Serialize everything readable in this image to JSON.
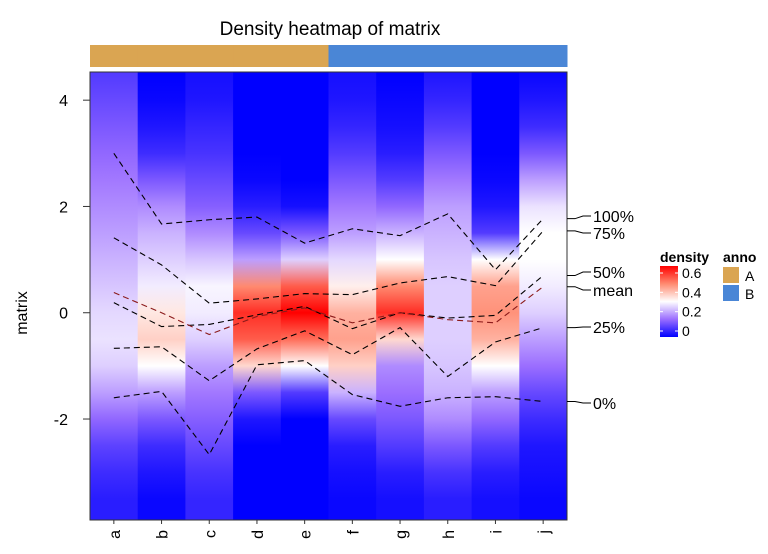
{
  "chart_data": {
    "type": "heatmap",
    "title": "Density heatmap of matrix",
    "ylabel": "matrix",
    "xlabel": "",
    "ylim": [
      -3.9,
      4.53
    ],
    "yticks": [
      4,
      2,
      0,
      -2
    ],
    "columns": [
      "a",
      "b",
      "c",
      "d",
      "e",
      "f",
      "g",
      "h",
      "i",
      "j"
    ],
    "annotation": {
      "title": "anno",
      "values": [
        "A",
        "A",
        "A",
        "A",
        "A",
        "B",
        "B",
        "B",
        "B",
        "B"
      ],
      "levels": [
        {
          "label": "A",
          "color": "#DAA552"
        },
        {
          "label": "B",
          "color": "#4A86D6"
        }
      ]
    },
    "density_legend": {
      "title": "density",
      "ticks": [
        0.6,
        0.4,
        0.2,
        0
      ],
      "colors": [
        {
          "v": 0,
          "c": "#0000FF"
        },
        {
          "v": 0.15,
          "c": "#9B6EFF"
        },
        {
          "v": 0.3,
          "c": "#FFFFFF"
        },
        {
          "v": 0.45,
          "c": "#FF8A70"
        },
        {
          "v": 0.6,
          "c": "#FF0000"
        }
      ]
    },
    "density_grid_y": [
      4.5,
      4,
      3.5,
      3,
      2.5,
      2,
      1.5,
      1,
      0.5,
      0,
      -0.5,
      -1,
      -1.5,
      -2,
      -2.5,
      -3,
      -3.5
    ],
    "density": [
      [
        0.08,
        0.1,
        0.12,
        0.14,
        0.16,
        0.18,
        0.2,
        0.22,
        0.24,
        0.26,
        0.27,
        0.25,
        0.2,
        0.14,
        0.09,
        0.06,
        0.04
      ],
      [
        0,
        0.01,
        0.03,
        0.06,
        0.12,
        0.18,
        0.22,
        0.25,
        0.28,
        0.33,
        0.36,
        0.3,
        0.2,
        0.12,
        0.06,
        0.03,
        0.01
      ],
      [
        0.02,
        0.03,
        0.05,
        0.07,
        0.1,
        0.13,
        0.18,
        0.24,
        0.29,
        0.28,
        0.25,
        0.2,
        0.16,
        0.13,
        0.1,
        0.07,
        0.05
      ],
      [
        0,
        0,
        0,
        0,
        0.01,
        0.04,
        0.1,
        0.2,
        0.45,
        0.55,
        0.5,
        0.35,
        0.12,
        0.03,
        0,
        0,
        0
      ],
      [
        0,
        0,
        0,
        0,
        0,
        0.02,
        0.12,
        0.25,
        0.5,
        0.62,
        0.48,
        0.3,
        0.08,
        0,
        0,
        0,
        0
      ],
      [
        0.02,
        0.03,
        0.05,
        0.08,
        0.12,
        0.16,
        0.2,
        0.26,
        0.32,
        0.4,
        0.42,
        0.36,
        0.22,
        0.1,
        0.04,
        0.02,
        0.01
      ],
      [
        0,
        0.01,
        0.02,
        0.04,
        0.08,
        0.14,
        0.22,
        0.3,
        0.45,
        0.55,
        0.35,
        0.18,
        0.15,
        0.12,
        0.08,
        0.04,
        0.02
      ],
      [
        0.03,
        0.05,
        0.08,
        0.12,
        0.16,
        0.2,
        0.22,
        0.24,
        0.25,
        0.25,
        0.25,
        0.24,
        0.22,
        0.18,
        0.12,
        0.07,
        0.04
      ],
      [
        0,
        0,
        0,
        0,
        0.01,
        0.03,
        0.08,
        0.3,
        0.42,
        0.44,
        0.4,
        0.3,
        0.2,
        0.14,
        0.08,
        0.04,
        0.02
      ],
      [
        0.01,
        0.03,
        0.06,
        0.12,
        0.2,
        0.27,
        0.3,
        0.3,
        0.28,
        0.25,
        0.2,
        0.15,
        0.1,
        0.06,
        0.03,
        0.02,
        0.01
      ]
    ],
    "series": [
      {
        "name": "100%",
        "color": "#000000",
        "values": [
          3.0,
          1.67,
          1.75,
          1.8,
          1.31,
          1.58,
          1.45,
          1.86,
          0.81,
          1.77
        ]
      },
      {
        "name": "75%",
        "color": "#000000",
        "values": [
          1.41,
          0.9,
          0.18,
          0.26,
          0.36,
          0.34,
          0.56,
          0.68,
          0.51,
          1.54
        ]
      },
      {
        "name": "50%",
        "color": "#000000",
        "values": [
          0.19,
          -0.26,
          -0.22,
          -0.04,
          0.12,
          -0.3,
          0.0,
          -0.1,
          -0.05,
          0.7
        ]
      },
      {
        "name": "mean",
        "color": "#8B1A1A",
        "values": [
          0.38,
          0.0,
          -0.41,
          -0.07,
          0.09,
          -0.19,
          0.0,
          -0.13,
          -0.19,
          0.49
        ]
      },
      {
        "name": "25%",
        "color": "#000000",
        "values": [
          -0.67,
          -0.64,
          -1.28,
          -0.68,
          -0.34,
          -0.79,
          -0.28,
          -1.2,
          -0.55,
          -0.28
        ]
      },
      {
        "name": "0%",
        "color": "#000000",
        "values": [
          -1.6,
          -1.48,
          -2.67,
          -0.98,
          -0.9,
          -1.54,
          -1.76,
          -1.6,
          -1.58,
          -1.67
        ]
      }
    ],
    "grid": false,
    "legend_position": "right"
  }
}
